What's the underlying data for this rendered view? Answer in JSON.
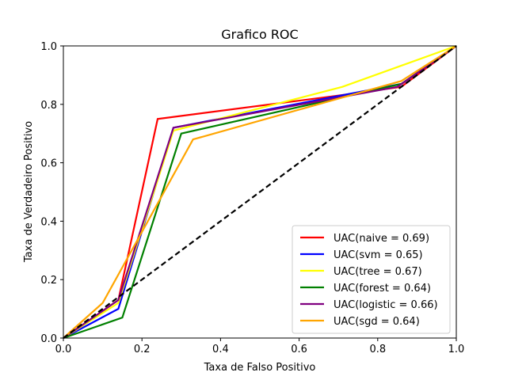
{
  "chart_data": {
    "type": "line",
    "title": "Grafico ROC",
    "xlabel": "Taxa de Falso Positivo",
    "ylabel": "Taxa de Verdadeiro Positivo",
    "xlim": [
      0.0,
      1.0
    ],
    "ylim": [
      0.0,
      1.0
    ],
    "xticks": [
      "0.0",
      "0.2",
      "0.4",
      "0.6",
      "0.8",
      "1.0"
    ],
    "yticks": [
      "0.0",
      "0.2",
      "0.4",
      "0.6",
      "0.8",
      "1.0"
    ],
    "grid": false,
    "legend_position": "lower-right",
    "baseline": {
      "x": [
        0,
        1
      ],
      "y": [
        0,
        1
      ],
      "color": "#000000",
      "style": "dashed"
    },
    "series": [
      {
        "name": "UAC(naive = 0.69)",
        "color": "#ff0000",
        "x": [
          0,
          0.14,
          0.24,
          0.7,
          0.86,
          1.0
        ],
        "y": [
          0,
          0.13,
          0.75,
          0.83,
          0.86,
          1.0
        ]
      },
      {
        "name": "UAC(svm = 0.65)",
        "color": "#0000ff",
        "x": [
          0,
          0.14,
          0.28,
          0.86,
          1.0
        ],
        "y": [
          0,
          0.1,
          0.72,
          0.87,
          1.0
        ]
      },
      {
        "name": "UAC(tree = 0.67)",
        "color": "#ffff00",
        "x": [
          0,
          0.14,
          0.28,
          0.71,
          1.0
        ],
        "y": [
          0,
          0.12,
          0.71,
          0.86,
          1.0
        ]
      },
      {
        "name": "UAC(forest = 0.64)",
        "color": "#008000",
        "x": [
          0,
          0.15,
          0.3,
          0.86,
          1.0
        ],
        "y": [
          0,
          0.07,
          0.7,
          0.87,
          1.0
        ]
      },
      {
        "name": "UAC(logistic = 0.66)",
        "color": "#800080",
        "x": [
          0,
          0.14,
          0.28,
          0.85,
          1.0
        ],
        "y": [
          0,
          0.13,
          0.72,
          0.86,
          1.0
        ]
      },
      {
        "name": "UAC(sgd = 0.64)",
        "color": "#ffa500",
        "x": [
          0,
          0.1,
          0.33,
          0.86,
          1.0
        ],
        "y": [
          0,
          0.12,
          0.68,
          0.88,
          1.0
        ]
      }
    ]
  }
}
